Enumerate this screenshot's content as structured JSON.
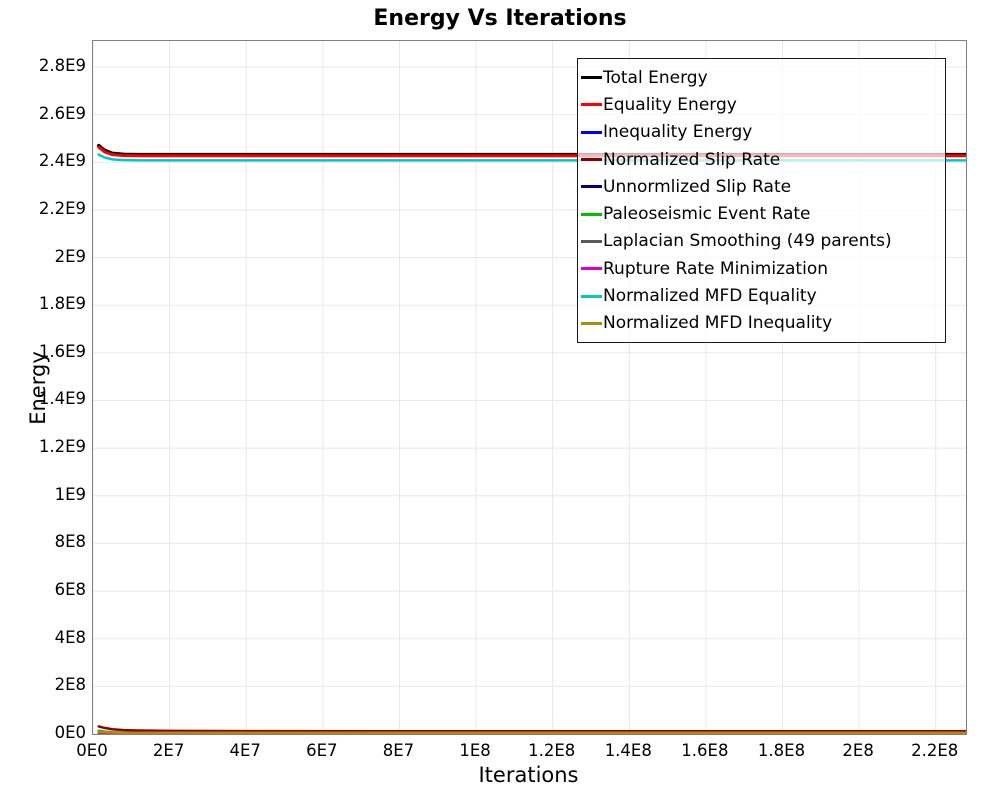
{
  "chart_data": {
    "type": "line",
    "title": "Energy Vs Iterations",
    "xlabel": "Iterations",
    "ylabel": "Energy",
    "xlim": [
      0,
      227900000
    ],
    "ylim": [
      0,
      2909000000
    ],
    "grid": true,
    "legend_position": "top-right",
    "colors": {
      "plot_border": "#808080",
      "gridline": "#e8e8e8",
      "legend_border": "#1a1a1a",
      "legend_background": "rgba(255,255,255,0.72)"
    },
    "x_ticks": {
      "labels": [
        "0E0",
        "2E7",
        "4E7",
        "6E7",
        "8E7",
        "1E8",
        "1.2E8",
        "1.4E8",
        "1.6E8",
        "1.8E8",
        "2E8",
        "2.2E8"
      ],
      "values": [
        0,
        20000000,
        40000000,
        60000000,
        80000000,
        100000000,
        120000000,
        140000000,
        160000000,
        180000000,
        200000000,
        220000000
      ]
    },
    "y_ticks": {
      "labels": [
        "0E0",
        "2E8",
        "4E8",
        "6E8",
        "8E8",
        "1E9",
        "1.2E9",
        "1.4E9",
        "1.6E9",
        "1.8E9",
        "2E9",
        "2.2E9",
        "2.4E9",
        "2.6E9",
        "2.8E9"
      ],
      "values": [
        0,
        200000000,
        400000000,
        600000000,
        800000000,
        1000000000,
        1200000000,
        1400000000,
        1600000000,
        1800000000,
        2000000000,
        2200000000,
        2400000000,
        2600000000,
        2800000000
      ]
    },
    "x": [
      1500000,
      3000000,
      5000000,
      8000000,
      12000000,
      20000000,
      40000000,
      80000000,
      140000000,
      227900000
    ],
    "series": [
      {
        "name": "Total Energy",
        "color": "#000000",
        "width": 3.5,
        "values": [
          2470000000,
          2450000000,
          2437000000,
          2433000000,
          2432000000,
          2432000000,
          2432000000,
          2432000000,
          2432000000,
          2432000000
        ]
      },
      {
        "name": "Equality Energy",
        "color": "#ff0000",
        "width": 3,
        "values": [
          2463000000,
          2444000000,
          2432000000,
          2428000000,
          2427000000,
          2427000000,
          2427000000,
          2427000000,
          2427000000,
          2427000000
        ]
      },
      {
        "name": "Inequality Energy",
        "color": "#0000ff",
        "width": 2,
        "values": [
          2500000,
          1800000,
          1200000,
          1000000,
          900000,
          800000,
          800000,
          800000,
          800000,
          800000
        ]
      },
      {
        "name": "Normalized Slip Rate",
        "color": "#8b0000",
        "width": 2.5,
        "values": [
          32000000,
          25500000,
          20000000,
          16500000,
          14500000,
          13000000,
          12000000,
          11500000,
          11500000,
          11500000
        ]
      },
      {
        "name": "Unnormlized Slip Rate",
        "color": "#00008b",
        "width": 2,
        "values": [
          6000000,
          4500000,
          3200000,
          2500000,
          2200000,
          2000000,
          1900000,
          1900000,
          1900000,
          1900000
        ]
      },
      {
        "name": "Paleoseismic Event Rate",
        "color": "#00c000",
        "width": 2.5,
        "values": [
          13500000,
          10000000,
          7500000,
          5800000,
          4800000,
          4000000,
          3500000,
          3300000,
          3300000,
          3300000
        ]
      },
      {
        "name": "Laplacian Smoothing (49 parents)",
        "color": "#5a5a5a",
        "width": 2,
        "values": [
          3000000,
          2300000,
          1700000,
          1400000,
          1200000,
          1100000,
          1000000,
          1000000,
          1000000,
          1000000
        ]
      },
      {
        "name": "Rupture Rate Minimization",
        "color": "#dd00cc",
        "width": 2,
        "values": [
          1500000,
          1100000,
          800000,
          600000,
          500000,
          500000,
          500000,
          500000,
          500000,
          500000
        ]
      },
      {
        "name": "Normalized MFD Equality",
        "color": "#00c8c8",
        "width": 2.5,
        "values": [
          2432000000,
          2420000000,
          2412000000,
          2409000000,
          2408000000,
          2408000000,
          2408000000,
          2408000000,
          2408000000,
          2408000000
        ]
      },
      {
        "name": "Normalized MFD Inequality",
        "color": "#b8860b",
        "width": 2.5,
        "values": [
          8500000,
          7200000,
          6200000,
          5600000,
          5200000,
          5000000,
          4900000,
          4900000,
          4900000,
          4900000
        ]
      }
    ]
  }
}
